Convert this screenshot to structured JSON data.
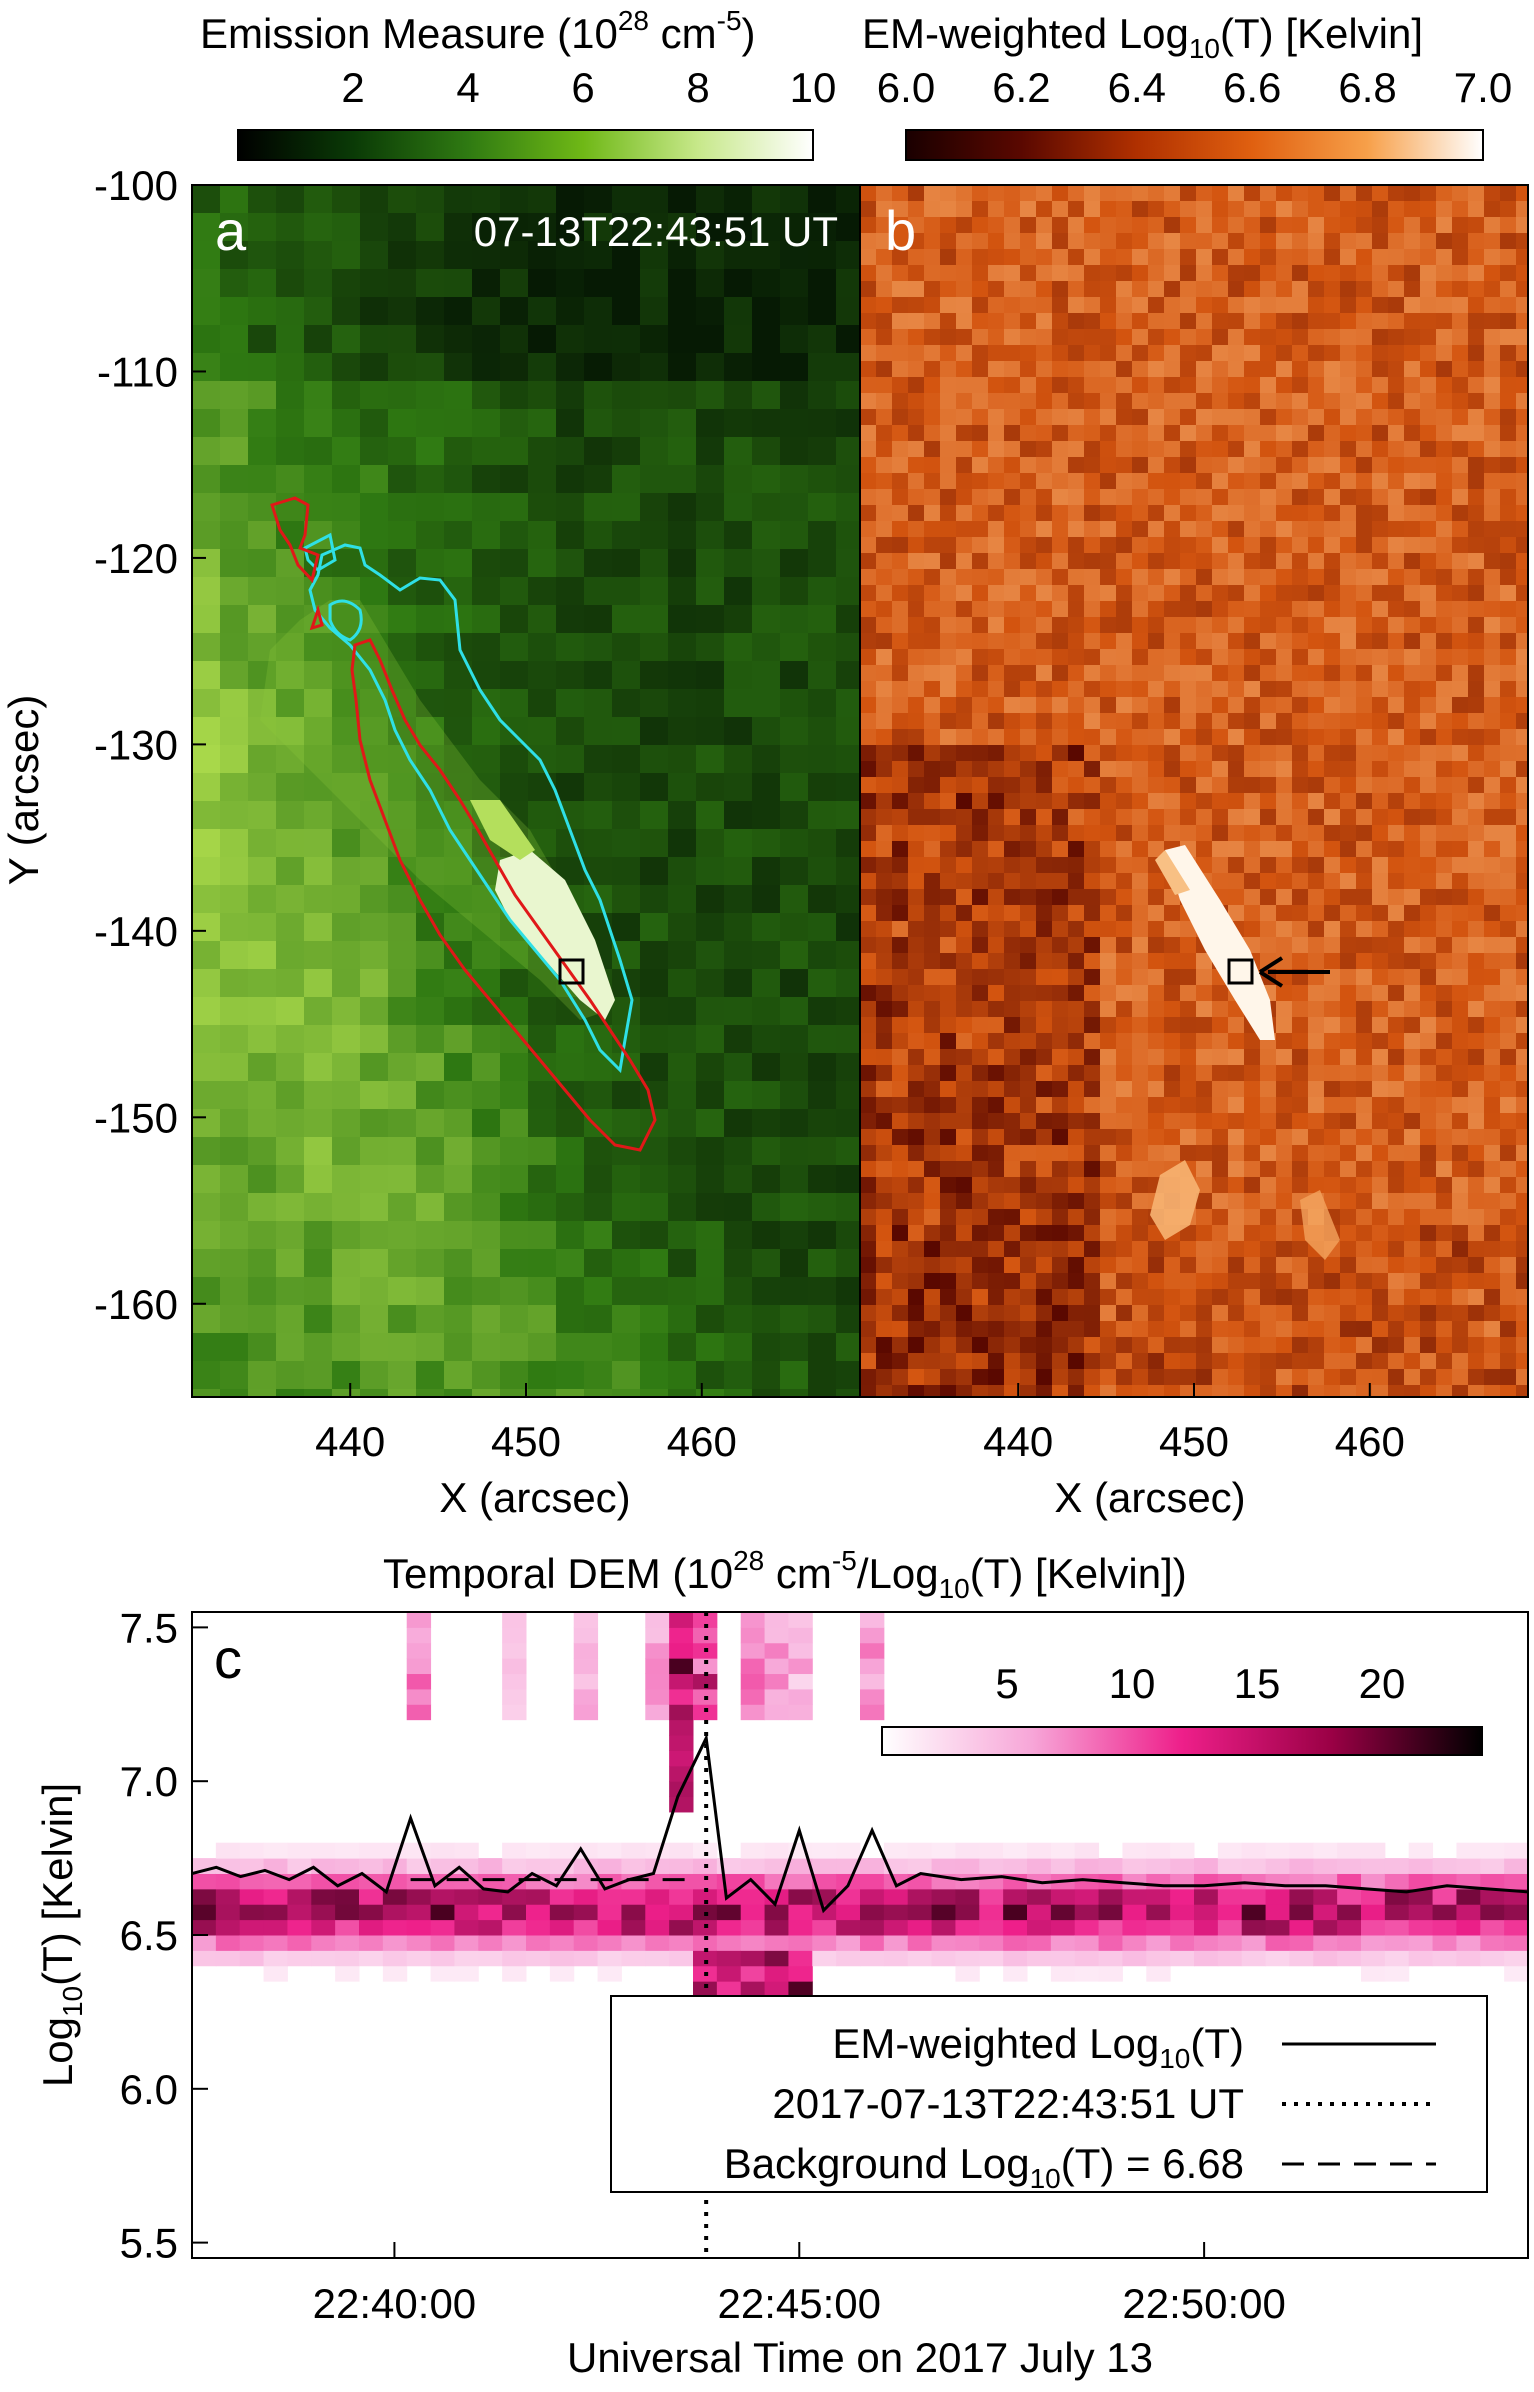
{
  "colorbars": {
    "em": {
      "title": "Emission Measure (10",
      "title_sup": "28",
      "title_unit": " cm",
      "title_unit_sup": "-5",
      "title_close": ")",
      "ticks": [
        "2",
        "4",
        "6",
        "8",
        "10"
      ],
      "range": [
        0,
        10
      ],
      "colors": [
        "#000000",
        "#0a3a06",
        "#2f7a12",
        "#6fb816",
        "#c7e88a",
        "#ffffff"
      ]
    },
    "temp": {
      "title": "EM-weighted Log",
      "title_sub": "10",
      "title_rest": "(T) [Kelvin]",
      "ticks": [
        "6.0",
        "6.2",
        "6.4",
        "6.6",
        "6.8",
        "7.0"
      ],
      "range": [
        6.0,
        7.0
      ],
      "colors": [
        "#1a0000",
        "#5a0800",
        "#b03000",
        "#e06010",
        "#f7a04a",
        "#ffffff"
      ]
    },
    "dem": {
      "ticks": [
        "5",
        "10",
        "15",
        "20"
      ],
      "range": [
        0,
        24
      ],
      "colors": [
        "#ffffff",
        "#f7a6d8",
        "#ee1f8a",
        "#9a0045",
        "#000000"
      ]
    }
  },
  "panel_a": {
    "letter": "a",
    "timestamp": "07-13T22:43:51 UT",
    "xlabel": "X (arcsec)",
    "ylabel": "Y (arcsec)",
    "xticks": [
      "440",
      "450",
      "460"
    ],
    "yticks": [
      "-100",
      "-110",
      "-120",
      "-130",
      "-140",
      "-150",
      "-160"
    ]
  },
  "panel_b": {
    "letter": "b",
    "xlabel": "X (arcsec)",
    "xticks": [
      "440",
      "450",
      "460"
    ]
  },
  "panel_c": {
    "letter": "c",
    "title": "Temporal DEM (10",
    "title_sup": "28",
    "title_mid": " cm",
    "title_sup2": "-5",
    "title_mid2": "/Log",
    "title_sub": "10",
    "title_end": "(T) [Kelvin])",
    "ylabel": "Log",
    "ylabel_sub": "10",
    "ylabel_rest": "(T) [Kelvin]",
    "xlabel": "Universal Time on 2017 July 13",
    "yticks": [
      "7.5",
      "7.0",
      "6.5",
      "6.0",
      "5.5"
    ],
    "xticks": [
      "22:40:00",
      "22:45:00",
      "22:50:00"
    ],
    "legend": {
      "line1": "EM-weighted Log",
      "line1_sub": "10",
      "line1_end": "(T)",
      "line2": "2017-07-13T22:43:51 UT",
      "line3": "Background Log",
      "line3_sub": "10",
      "line3_end": "(T) = 6.68"
    }
  },
  "chart_data": [
    {
      "type": "heatmap",
      "panel": "a",
      "quantity": "Emission Measure",
      "xlim": [
        431,
        469
      ],
      "ylim": [
        -165,
        -100
      ],
      "selected_pixel": {
        "x": 453,
        "y": -142.5
      }
    },
    {
      "type": "heatmap",
      "panel": "b",
      "quantity": "EM-weighted Log10(T)",
      "xlim": [
        431,
        469
      ],
      "ylim": [
        -165,
        -100
      ],
      "selected_pixel": {
        "x": 453,
        "y": -142.5
      }
    },
    {
      "type": "line",
      "panel": "c",
      "xlim": [
        "22:37:30",
        "22:54:00"
      ],
      "ylim": [
        5.45,
        7.55
      ],
      "series": [
        {
          "name": "EM-weighted Log10(T)",
          "x": [
            "22:37:30",
            "22:37:48",
            "22:38:06",
            "22:38:24",
            "22:38:42",
            "22:39:00",
            "22:39:18",
            "22:39:36",
            "22:39:54",
            "22:40:12",
            "22:40:30",
            "22:40:48",
            "22:41:06",
            "22:41:24",
            "22:41:42",
            "22:42:00",
            "22:42:18",
            "22:42:36",
            "22:42:54",
            "22:43:12",
            "22:43:30",
            "22:43:51",
            "22:44:06",
            "22:44:24",
            "22:44:42",
            "22:45:00",
            "22:45:18",
            "22:45:36",
            "22:45:54",
            "22:46:12",
            "22:46:30",
            "22:47:00",
            "22:47:30",
            "22:48:00",
            "22:48:30",
            "22:49:00",
            "22:49:30",
            "22:50:00",
            "22:50:30",
            "22:51:00",
            "22:51:30",
            "22:52:00",
            "22:52:30",
            "22:53:00",
            "22:53:30",
            "22:54:00"
          ],
          "y": [
            6.7,
            6.72,
            6.69,
            6.71,
            6.68,
            6.72,
            6.66,
            6.7,
            6.64,
            6.88,
            6.66,
            6.72,
            6.65,
            6.64,
            6.7,
            6.66,
            6.78,
            6.65,
            6.68,
            6.7,
            6.95,
            7.14,
            6.62,
            6.68,
            6.6,
            6.84,
            6.58,
            6.66,
            6.84,
            6.66,
            6.7,
            6.68,
            6.69,
            6.67,
            6.68,
            6.67,
            6.66,
            6.66,
            6.67,
            6.66,
            6.66,
            6.65,
            6.64,
            6.66,
            6.65,
            6.64
          ]
        },
        {
          "name": "Background Log10(T)",
          "x": [
            "22:40:12",
            "22:43:40"
          ],
          "y": [
            6.68,
            6.68
          ]
        }
      ],
      "vertical_marker": {
        "name": "2017-07-13T22:43:51 UT",
        "x": "22:43:51"
      }
    }
  ]
}
